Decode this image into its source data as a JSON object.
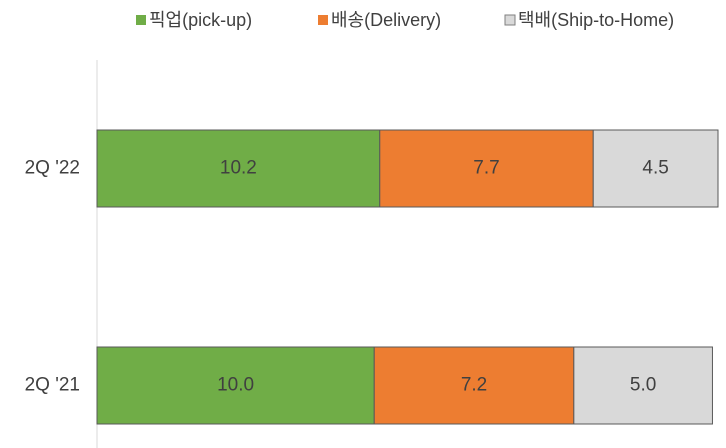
{
  "chart_data": {
    "type": "stacked-barh",
    "categories": [
      "2Q '22",
      "2Q '21"
    ],
    "series": [
      {
        "name": "픽업(pick-up)",
        "color": "#70ad47",
        "values": [
          10.2,
          10.0
        ],
        "value_labels": [
          "10.2",
          "10.0"
        ]
      },
      {
        "name": "배송(Delivery)",
        "color": "#ed7d31",
        "values": [
          7.7,
          7.2
        ],
        "value_labels": [
          "7.7",
          "7.2"
        ]
      },
      {
        "name": "택배(Ship-to-Home)",
        "color": "#d9d9d9",
        "values": [
          4.5,
          5.0
        ],
        "value_labels": [
          "4.5",
          "5.0"
        ]
      }
    ],
    "legend": "top"
  }
}
